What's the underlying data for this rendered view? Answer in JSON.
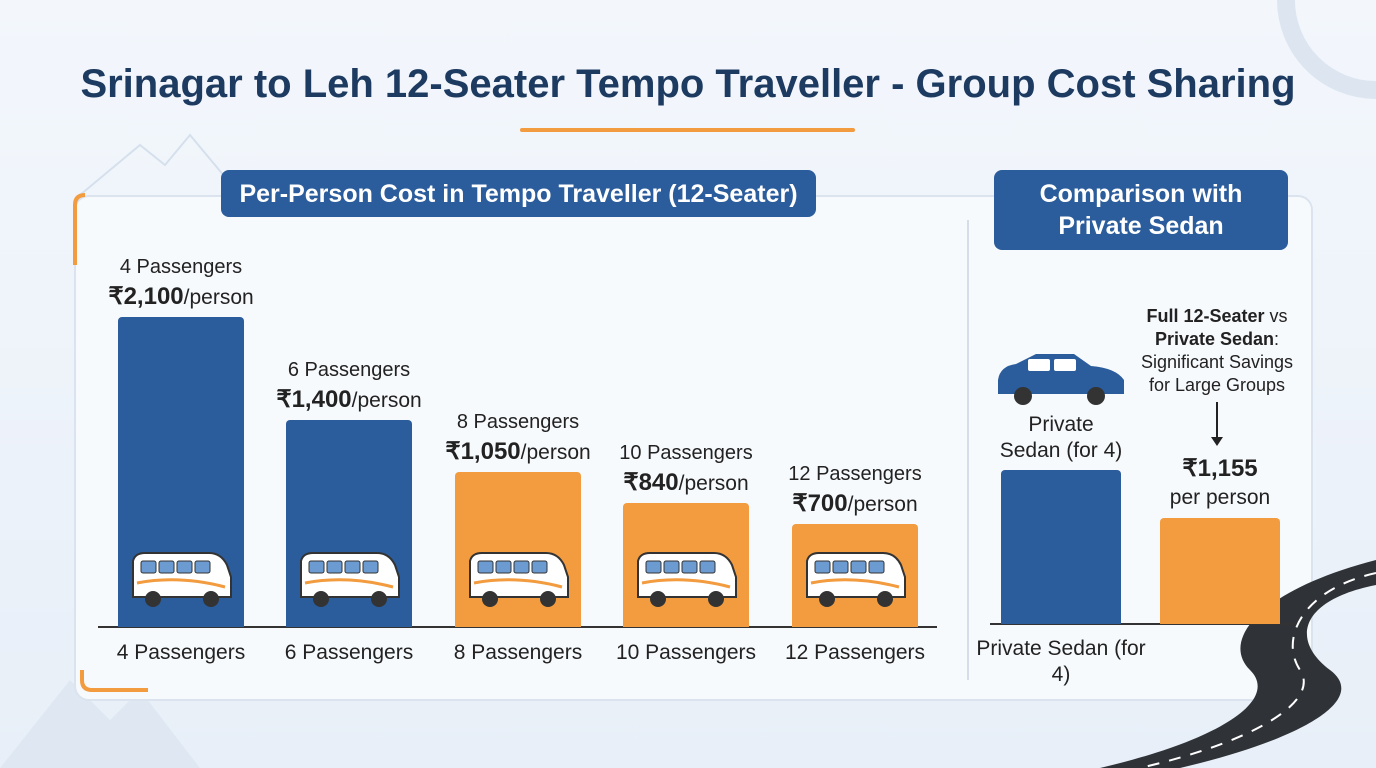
{
  "title": "Srinagar to Leh 12-Seater Tempo Traveller - Group Cost Sharing",
  "chart_data": [
    {
      "type": "bar",
      "title": "Per-Person Cost in Tempo Traveller (12-Seater)",
      "categories": [
        "4 Passengers",
        "6 Passengers",
        "8 Passengers",
        "10 Passengers",
        "12 Passengers"
      ],
      "values": [
        2100,
        1400,
        1050,
        840,
        700
      ],
      "value_labels": [
        "₹2,100",
        "₹1,400",
        "₹1,050",
        "₹840",
        "₹700"
      ],
      "value_label_unit": "/person",
      "colors": [
        "#2b5c9b",
        "#2b5c9b",
        "#f29b3f",
        "#f29b3f",
        "#f29b3f"
      ]
    },
    {
      "type": "bar",
      "title": "Comparison with Private Sedan",
      "categories": [
        "Private Sedan (for 4)",
        null
      ],
      "values": [
        1680,
        1155
      ],
      "value_labels": [
        null,
        "₹1,155"
      ],
      "value_label_unit": "per person",
      "colors": [
        "#2b5c9b",
        "#f29b3f"
      ],
      "annotation": [
        [
          "Full 12-Seater",
          " vs"
        ],
        [
          "Private Sedan",
          ":"
        ],
        [
          "Significant Savings"
        ],
        [
          "for Large Groups"
        ]
      ]
    }
  ]
}
